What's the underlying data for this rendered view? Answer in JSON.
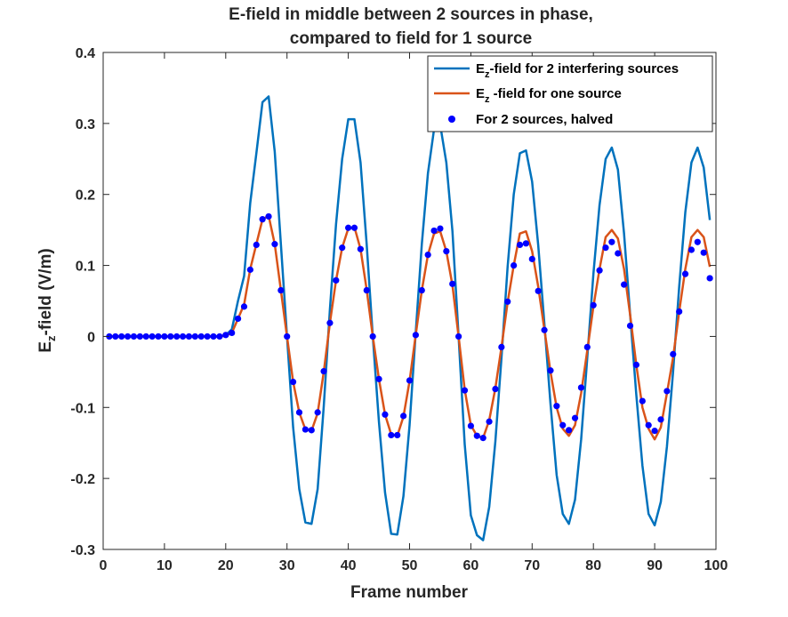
{
  "chart_data": {
    "type": "line",
    "title": [
      "E-field in middle between 2 sources in phase,",
      "compared to field for 1 source"
    ],
    "xlabel": "Frame number",
    "ylabel": {
      "main": "E",
      "sub": "z",
      "rest": "-field (V/m)"
    },
    "xlim": [
      0,
      100
    ],
    "ylim": [
      -0.3,
      0.4
    ],
    "xticks": [
      "0",
      "10",
      "20",
      "30",
      "40",
      "50",
      "60",
      "70",
      "80",
      "90",
      "100"
    ],
    "yticks": [
      "0.4",
      "0.3",
      "0.2",
      "0.1",
      "0",
      "-0.1",
      "-0.2",
      "-0.3"
    ],
    "grid": false,
    "legend_position": "top-right",
    "series": [
      {
        "name": "Ez-field for 2 interfering sources",
        "legend_parts": {
          "main": "E",
          "sub": "z",
          "rest": "-field for 2 interfering sources"
        },
        "style": "line",
        "color": "#0072BD",
        "x": [
          1,
          2,
          3,
          4,
          5,
          6,
          7,
          8,
          9,
          10,
          11,
          12,
          13,
          14,
          15,
          16,
          17,
          18,
          19,
          20,
          21,
          22,
          23,
          24,
          25,
          26,
          27,
          28,
          29,
          30,
          31,
          32,
          33,
          34,
          35,
          36,
          37,
          38,
          39,
          40,
          41,
          42,
          43,
          44,
          45,
          46,
          47,
          48,
          49,
          50,
          51,
          52,
          53,
          54,
          55,
          56,
          57,
          58,
          59,
          60,
          61,
          62,
          63,
          64,
          65,
          66,
          67,
          68,
          69,
          70,
          71,
          72,
          73,
          74,
          75,
          76,
          77,
          78,
          79,
          80,
          81,
          82,
          83,
          84,
          85,
          86,
          87,
          88,
          89,
          90,
          91,
          92,
          93,
          94,
          95,
          96,
          97,
          98,
          99
        ],
        "y": [
          0,
          0,
          0,
          0,
          0,
          0,
          0,
          0,
          0,
          0,
          0,
          0,
          0,
          0,
          0,
          0,
          0,
          0,
          0,
          0.002,
          0.01,
          0.05,
          0.085,
          0.188,
          0.258,
          0.33,
          0.338,
          0.26,
          0.13,
          0,
          -0.128,
          -0.215,
          -0.262,
          -0.264,
          -0.215,
          -0.098,
          0.038,
          0.158,
          0.25,
          0.306,
          0.306,
          0.245,
          0.13,
          0,
          -0.12,
          -0.22,
          -0.278,
          -0.279,
          -0.225,
          -0.125,
          0.005,
          0.13,
          0.23,
          0.292,
          0.298,
          0.245,
          0.148,
          0,
          -0.152,
          -0.252,
          -0.28,
          -0.287,
          -0.24,
          -0.148,
          -0.03,
          0.098,
          0.2,
          0.258,
          0.262,
          0.218,
          0.128,
          0.018,
          -0.095,
          -0.195,
          -0.25,
          -0.264,
          -0.23,
          -0.145,
          -0.03,
          0.088,
          0.185,
          0.25,
          0.266,
          0.235,
          0.145,
          0.03,
          -0.082,
          -0.182,
          -0.25,
          -0.266,
          -0.233,
          -0.155,
          -0.05,
          0.07,
          0.175,
          0.245,
          0.266,
          0.238,
          0.164
        ]
      },
      {
        "name": "Ez -field for one source",
        "legend_parts": {
          "main": "E",
          "sub": "z",
          "rest": " -field for one source"
        },
        "style": "line",
        "color": "#D95319",
        "x": [
          1,
          2,
          3,
          4,
          5,
          6,
          7,
          8,
          9,
          10,
          11,
          12,
          13,
          14,
          15,
          16,
          17,
          18,
          19,
          20,
          21,
          22,
          23,
          24,
          25,
          26,
          27,
          28,
          29,
          30,
          31,
          32,
          33,
          34,
          35,
          36,
          37,
          38,
          39,
          40,
          41,
          42,
          43,
          44,
          45,
          46,
          47,
          48,
          49,
          50,
          51,
          52,
          53,
          54,
          55,
          56,
          57,
          58,
          59,
          60,
          61,
          62,
          63,
          64,
          65,
          66,
          67,
          68,
          69,
          70,
          71,
          72,
          73,
          74,
          75,
          76,
          77,
          78,
          79,
          80,
          81,
          82,
          83,
          84,
          85,
          86,
          87,
          88,
          89,
          90,
          91,
          92,
          93,
          94,
          95,
          96,
          97,
          98,
          99
        ],
        "y": [
          0,
          0,
          0,
          0,
          0,
          0,
          0,
          0,
          0,
          0,
          0,
          0,
          0,
          0,
          0,
          0,
          0,
          0,
          0,
          0.001,
          0.005,
          0.025,
          0.045,
          0.095,
          0.13,
          0.165,
          0.17,
          0.13,
          0.065,
          0,
          -0.064,
          -0.107,
          -0.131,
          -0.133,
          -0.108,
          -0.05,
          0.019,
          0.079,
          0.125,
          0.152,
          0.154,
          0.123,
          0.066,
          0,
          -0.06,
          -0.11,
          -0.138,
          -0.14,
          -0.113,
          -0.063,
          0.002,
          0.065,
          0.115,
          0.145,
          0.148,
          0.12,
          0.072,
          0,
          -0.075,
          -0.125,
          -0.14,
          -0.143,
          -0.118,
          -0.073,
          -0.015,
          0.048,
          0.1,
          0.145,
          0.148,
          0.12,
          0.07,
          0.01,
          -0.05,
          -0.1,
          -0.13,
          -0.14,
          -0.125,
          -0.08,
          -0.02,
          0.042,
          0.095,
          0.14,
          0.15,
          0.138,
          0.095,
          0.03,
          -0.04,
          -0.1,
          -0.13,
          -0.145,
          -0.128,
          -0.08,
          -0.03,
          0.035,
          0.095,
          0.14,
          0.15,
          0.14,
          0.098
        ]
      },
      {
        "name": "For 2 sources, halved",
        "style": "markers",
        "color": "#0000FF",
        "x": [
          1,
          2,
          3,
          4,
          5,
          6,
          7,
          8,
          9,
          10,
          11,
          12,
          13,
          14,
          15,
          16,
          17,
          18,
          19,
          20,
          21,
          22,
          23,
          24,
          25,
          26,
          27,
          28,
          29,
          30,
          31,
          32,
          33,
          34,
          35,
          36,
          37,
          38,
          39,
          40,
          41,
          42,
          43,
          44,
          45,
          46,
          47,
          48,
          49,
          50,
          51,
          52,
          53,
          54,
          55,
          56,
          57,
          58,
          59,
          60,
          61,
          62,
          63,
          64,
          65,
          66,
          67,
          68,
          69,
          70,
          71,
          72,
          73,
          74,
          75,
          76,
          77,
          78,
          79,
          80,
          81,
          82,
          83,
          84,
          85,
          86,
          87,
          88,
          89,
          90,
          91,
          92,
          93,
          94,
          95,
          96,
          97,
          98,
          99
        ],
        "y": [
          0,
          0,
          0,
          0,
          0,
          0,
          0,
          0,
          0,
          0,
          0,
          0,
          0,
          0,
          0,
          0,
          0,
          0,
          0,
          0.002,
          0.005,
          0.025,
          0.042,
          0.094,
          0.129,
          0.165,
          0.169,
          0.13,
          0.065,
          0,
          -0.064,
          -0.107,
          -0.131,
          -0.132,
          -0.107,
          -0.049,
          0.019,
          0.079,
          0.125,
          0.153,
          0.153,
          0.123,
          0.065,
          0,
          -0.06,
          -0.11,
          -0.139,
          -0.139,
          -0.112,
          -0.062,
          0.002,
          0.065,
          0.115,
          0.149,
          0.152,
          0.12,
          0.074,
          0,
          -0.076,
          -0.126,
          -0.14,
          -0.143,
          -0.12,
          -0.074,
          -0.015,
          0.049,
          0.1,
          0.129,
          0.131,
          0.109,
          0.064,
          0.009,
          -0.048,
          -0.098,
          -0.125,
          -0.132,
          -0.115,
          -0.072,
          -0.015,
          0.044,
          0.093,
          0.125,
          0.133,
          0.117,
          0.073,
          0.015,
          -0.04,
          -0.091,
          -0.125,
          -0.133,
          -0.117,
          -0.077,
          -0.025,
          0.035,
          0.088,
          0.122,
          0.133,
          0.118,
          0.082
        ]
      }
    ]
  }
}
